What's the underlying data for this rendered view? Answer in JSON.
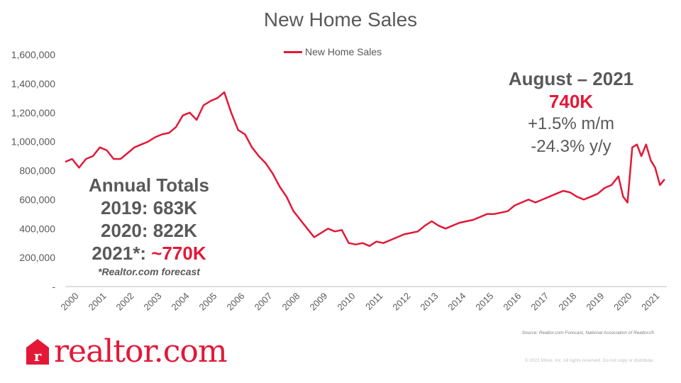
{
  "colors": {
    "accent": "#e31837",
    "text": "#595959",
    "axis": "#595959"
  },
  "callout_aug": {
    "heading": "August – 2021",
    "value": "740K",
    "mm": "+1.5%  m/m",
    "yy": "-24.3%  y/y"
  },
  "annual": {
    "heading": "Annual Totals",
    "row2019": "2019: 683K",
    "row2020": "2020: 822K",
    "row2021_label": "2021*: ",
    "row2021_value": "~770K",
    "footnote": "*Realtor.com forecast"
  },
  "source": "Source:  Realtor.com Forecast,  National Association of Realtors®",
  "copyright": "© 2021 Move, Inc. All rights reserved. Do not copy or distribute.",
  "logo": {
    "text": "realtor.com",
    "icon": "realtor-r-logo-icon"
  },
  "chart_data": {
    "type": "line",
    "title": "New Home Sales",
    "legend": "top-center",
    "grid": false,
    "xlabel": "",
    "ylabel": "",
    "ylim": [
      0,
      1600000
    ],
    "y_ticks": [
      {
        "value": 0,
        "label": "-"
      },
      {
        "value": 200000,
        "label": "200,000"
      },
      {
        "value": 400000,
        "label": "400,000"
      },
      {
        "value": 600000,
        "label": "600,000"
      },
      {
        "value": 800000,
        "label": "800,000"
      },
      {
        "value": 1000000,
        "label": "1,000,000"
      },
      {
        "value": 1200000,
        "label": "1,200,000"
      },
      {
        "value": 1400000,
        "label": "1,400,000"
      },
      {
        "value": 1600000,
        "label": "1,600,000"
      }
    ],
    "x_ticks": [
      "2000",
      "2001",
      "2002",
      "2003",
      "2004",
      "2005",
      "2006",
      "2007",
      "2008",
      "2009",
      "2010",
      "2011",
      "2012",
      "2013",
      "2014",
      "2015",
      "2016",
      "2017",
      "2018",
      "2019",
      "2020",
      "2021"
    ],
    "series": [
      {
        "name": "New Home Sales",
        "color": "#e31837",
        "x": [
          2000.0,
          2000.25,
          2000.5,
          2000.75,
          2001.0,
          2001.25,
          2001.5,
          2001.75,
          2002.0,
          2002.25,
          2002.5,
          2002.75,
          2003.0,
          2003.25,
          2003.5,
          2003.75,
          2004.0,
          2004.25,
          2004.5,
          2004.75,
          2005.0,
          2005.25,
          2005.5,
          2005.75,
          2006.0,
          2006.25,
          2006.5,
          2006.75,
          2007.0,
          2007.25,
          2007.5,
          2007.75,
          2008.0,
          2008.25,
          2008.5,
          2008.75,
          2009.0,
          2009.25,
          2009.5,
          2009.75,
          2010.0,
          2010.25,
          2010.5,
          2010.75,
          2011.0,
          2011.25,
          2011.5,
          2011.75,
          2012.0,
          2012.25,
          2012.5,
          2012.75,
          2013.0,
          2013.25,
          2013.5,
          2013.75,
          2014.0,
          2014.25,
          2014.5,
          2014.75,
          2015.0,
          2015.25,
          2015.5,
          2015.75,
          2016.0,
          2016.25,
          2016.5,
          2016.75,
          2017.0,
          2017.25,
          2017.5,
          2017.75,
          2018.0,
          2018.25,
          2018.5,
          2018.75,
          2019.0,
          2019.25,
          2019.5,
          2019.75,
          2020.0,
          2020.17,
          2020.33,
          2020.5,
          2020.67,
          2020.83,
          2021.0,
          2021.17,
          2021.33,
          2021.5,
          2021.67
        ],
        "values": [
          860000,
          880000,
          820000,
          880000,
          900000,
          960000,
          940000,
          880000,
          880000,
          920000,
          960000,
          980000,
          1000000,
          1030000,
          1050000,
          1060000,
          1100000,
          1180000,
          1200000,
          1150000,
          1250000,
          1280000,
          1300000,
          1340000,
          1200000,
          1080000,
          1050000,
          960000,
          900000,
          850000,
          780000,
          690000,
          620000,
          520000,
          460000,
          400000,
          340000,
          370000,
          400000,
          380000,
          390000,
          300000,
          290000,
          300000,
          280000,
          310000,
          300000,
          320000,
          340000,
          360000,
          370000,
          380000,
          420000,
          450000,
          420000,
          400000,
          420000,
          440000,
          450000,
          460000,
          480000,
          500000,
          500000,
          510000,
          520000,
          560000,
          580000,
          600000,
          580000,
          600000,
          620000,
          640000,
          660000,
          650000,
          620000,
          600000,
          620000,
          640000,
          680000,
          700000,
          760000,
          620000,
          580000,
          960000,
          980000,
          900000,
          980000,
          870000,
          820000,
          700000,
          740000
        ]
      }
    ]
  }
}
